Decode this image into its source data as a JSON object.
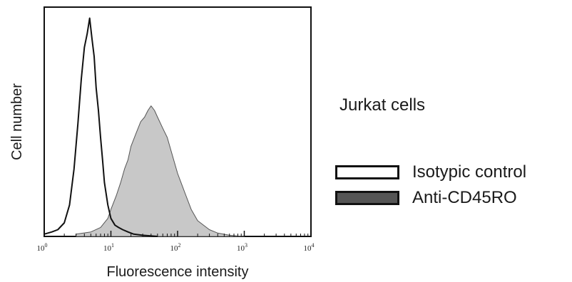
{
  "chart_data": {
    "type": "area",
    "title": "Jurkat cells",
    "xlabel": "Fluorescence intensity",
    "ylabel": "Cell number",
    "x_scale": "log",
    "xlim": [
      1,
      10000
    ],
    "ylim": [
      0,
      1
    ],
    "x_ticks": [
      {
        "base": "10",
        "exp": "0"
      },
      {
        "base": "10",
        "exp": "1"
      },
      {
        "base": "10",
        "exp": "2"
      },
      {
        "base": "10",
        "exp": "3"
      },
      {
        "base": "10",
        "exp": "4"
      }
    ],
    "legend_position": "right",
    "series": [
      {
        "name": "Isotypic control",
        "style": "outline",
        "color": "#111111",
        "x": [
          1.0,
          1.3,
          1.6,
          2.0,
          2.4,
          2.8,
          3.2,
          3.6,
          4.0,
          4.4,
          4.8,
          5.2,
          5.6,
          6.0,
          6.5,
          7.0,
          7.5,
          8.0,
          9.0,
          10.0,
          11.5,
          13.0,
          15.0,
          18.0,
          22.0,
          30.0,
          50.0
        ],
        "y": [
          0.01,
          0.02,
          0.03,
          0.06,
          0.14,
          0.3,
          0.5,
          0.7,
          0.84,
          0.9,
          0.97,
          0.88,
          0.8,
          0.66,
          0.56,
          0.44,
          0.34,
          0.24,
          0.14,
          0.08,
          0.05,
          0.04,
          0.03,
          0.02,
          0.01,
          0.005,
          0.0
        ]
      },
      {
        "name": "Anti-CD45RO",
        "style": "filled",
        "color": "#c8c8c8",
        "x": [
          3.0,
          5.0,
          7.0,
          9.0,
          10.0,
          12.0,
          14.0,
          16.0,
          18.0,
          20.0,
          24.0,
          28.0,
          32.0,
          36.0,
          40.0,
          45.0,
          50.0,
          60.0,
          70.0,
          80.0,
          100.0,
          130.0,
          160.0,
          200.0,
          300.0,
          400.0,
          600.0,
          800.0,
          1000.0
        ],
        "y": [
          0.01,
          0.02,
          0.04,
          0.08,
          0.12,
          0.18,
          0.24,
          0.3,
          0.34,
          0.4,
          0.46,
          0.51,
          0.53,
          0.56,
          0.58,
          0.56,
          0.53,
          0.48,
          0.44,
          0.38,
          0.28,
          0.19,
          0.12,
          0.07,
          0.03,
          0.015,
          0.005,
          0.002,
          0.0
        ]
      }
    ]
  }
}
